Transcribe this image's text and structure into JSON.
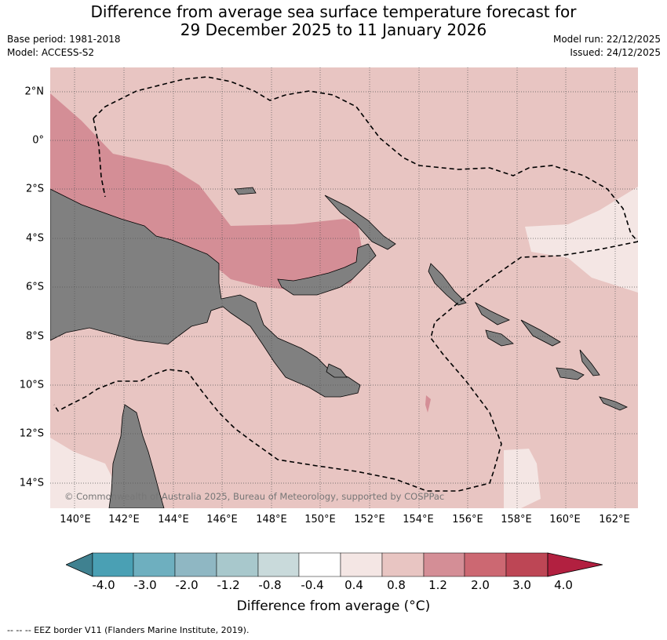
{
  "header": {
    "title_line1": "Difference from average sea surface temperature forecast for",
    "title_line2": "29 December 2025 to 11 January 2026",
    "base_period": "Base period: 1981-2018",
    "model": "Model: ACCESS-S2",
    "model_run": "Model run: 22/12/2025",
    "issued": "Issued: 24/12/2025"
  },
  "map": {
    "lat_labels": [
      "2°N",
      "0°",
      "2°S",
      "4°S",
      "6°S",
      "8°S",
      "10°S",
      "12°S",
      "14°S"
    ],
    "lon_labels": [
      "140°E",
      "142°E",
      "144°E",
      "146°E",
      "148°E",
      "150°E",
      "152°E",
      "154°E",
      "156°E",
      "158°E",
      "160°E",
      "162°E"
    ],
    "copyright": "© Commonwealth of Australia 2025, Bureau of Meteorology, supported by COSPPac",
    "colors": {
      "land": "#808080",
      "band_0_4_0_8": "#f4e6e4",
      "band_0_8_1_2": "#e8c5c2",
      "band_1_2_2_0": "#d48e96"
    }
  },
  "colorbar": {
    "tick_labels": [
      "-4.0",
      "-3.0",
      "-2.0",
      "-1.2",
      "-0.8",
      "-0.4",
      "0.4",
      "0.8",
      "1.2",
      "2.0",
      "3.0",
      "4.0"
    ],
    "colors": [
      "#3f8190",
      "#4aa0b4",
      "#6eafbf",
      "#8fb7c3",
      "#a8c8cc",
      "#c9dadb",
      "#ffffff",
      "#f4e6e4",
      "#e8c5c2",
      "#d48e96",
      "#cc6872",
      "#bd4655",
      "#b22040"
    ],
    "title": "Difference from average (°C)"
  },
  "footer": {
    "eez_note": "--  --  -- EEZ border V11 (Flanders Marine Institute, 2019)."
  }
}
